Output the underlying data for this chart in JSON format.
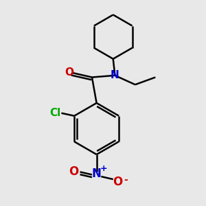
{
  "background_color": "#e8e8e8",
  "bond_color": "#000000",
  "nitrogen_color": "#0000cc",
  "oxygen_color": "#cc0000",
  "chlorine_color": "#00aa00",
  "line_width": 1.8,
  "figsize": [
    3.0,
    3.0
  ],
  "dpi": 100,
  "xlim": [
    -0.6,
    1.1
  ],
  "ylim": [
    -1.1,
    1.1
  ]
}
